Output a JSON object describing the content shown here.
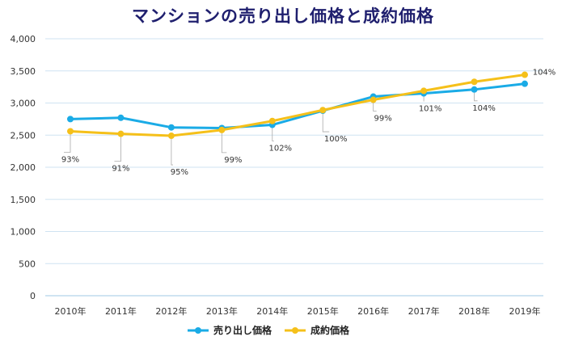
{
  "chart_data": {
    "type": "line",
    "title": "マンションの売り出し価格と成約価格",
    "categories": [
      "2010年",
      "2011年",
      "2012年",
      "2013年",
      "2014年",
      "2015年",
      "2016年",
      "2017年",
      "2018年",
      "2019年"
    ],
    "series": [
      {
        "name": "売り出し価格",
        "color": "#1aabe6",
        "values": [
          2750,
          2770,
          2620,
          2610,
          2660,
          2880,
          3100,
          3150,
          3210,
          3300
        ]
      },
      {
        "name": "成約価格",
        "color": "#f5c01a",
        "values": [
          2560,
          2520,
          2490,
          2580,
          2720,
          2890,
          3050,
          3190,
          3330,
          3440
        ]
      }
    ],
    "annotations": [
      "93%",
      "91%",
      "95%",
      "99%",
      "102%",
      "100%",
      "99%",
      "101%",
      "104%",
      "104%"
    ],
    "ylim": [
      0,
      4000
    ],
    "yticks": [
      "0",
      "500",
      "1,000",
      "1,500",
      "2,000",
      "2,500",
      "3,000",
      "3,500",
      "4,000"
    ],
    "grid": true,
    "legend_position": "bottom"
  }
}
